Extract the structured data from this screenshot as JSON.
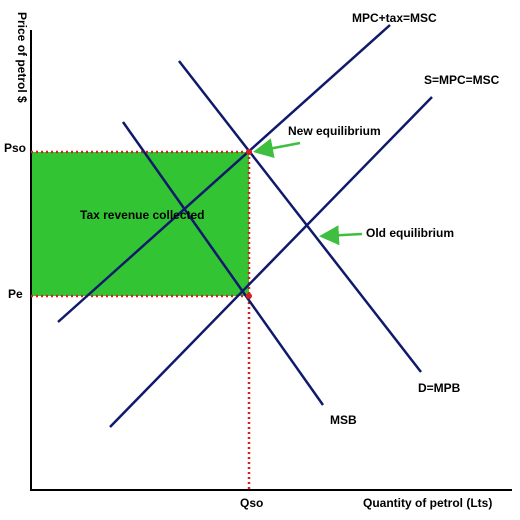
{
  "axes": {
    "y_label": "Price of petrol $",
    "x_label": "Quantity of petrol (Lts)",
    "y_points": [
      "Pso",
      "Pe"
    ],
    "x_points": [
      "Qso"
    ]
  },
  "curves": [
    "MPC+tax=MSC",
    "S=MPC=MSC",
    "D=MPB",
    "MSB"
  ],
  "annotations": {
    "new_equilibrium": "New equilibrium",
    "old_equilibrium": "Old equilibrium",
    "area": "Tax revenue collected"
  }
}
